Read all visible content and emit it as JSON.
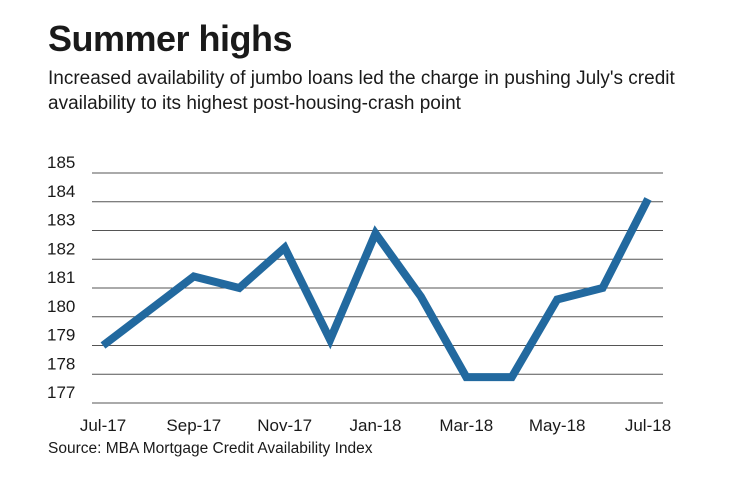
{
  "chart_data": {
    "type": "line",
    "title": "Summer highs",
    "subtitle": "Increased availability of jumbo loans led the charge in pushing July's credit availability to its highest post-housing-crash point",
    "source": "Source: MBA Mortgage Credit Availability Index",
    "x": [
      "Jul-17",
      "Aug-17",
      "Sep-17",
      "Oct-17",
      "Nov-17",
      "Dec-17",
      "Jan-18",
      "Feb-18",
      "Mar-18",
      "Apr-18",
      "May-18",
      "Jun-18",
      "Jul-18"
    ],
    "values": [
      179.0,
      180.2,
      181.4,
      181.0,
      182.4,
      179.2,
      182.9,
      180.7,
      177.9,
      177.9,
      180.6,
      181.0,
      184.1
    ],
    "x_tick_labels": [
      "Jul-17",
      "Sep-17",
      "Nov-17",
      "Jan-18",
      "Mar-18",
      "May-18",
      "Jul-18"
    ],
    "y_ticks": [
      177,
      178,
      179,
      180,
      181,
      182,
      183,
      184,
      185
    ],
    "ylim": [
      177,
      185
    ],
    "xlabel": "",
    "ylabel": "",
    "grid": true,
    "line_color": "#22699f",
    "grid_color": "#555555"
  }
}
